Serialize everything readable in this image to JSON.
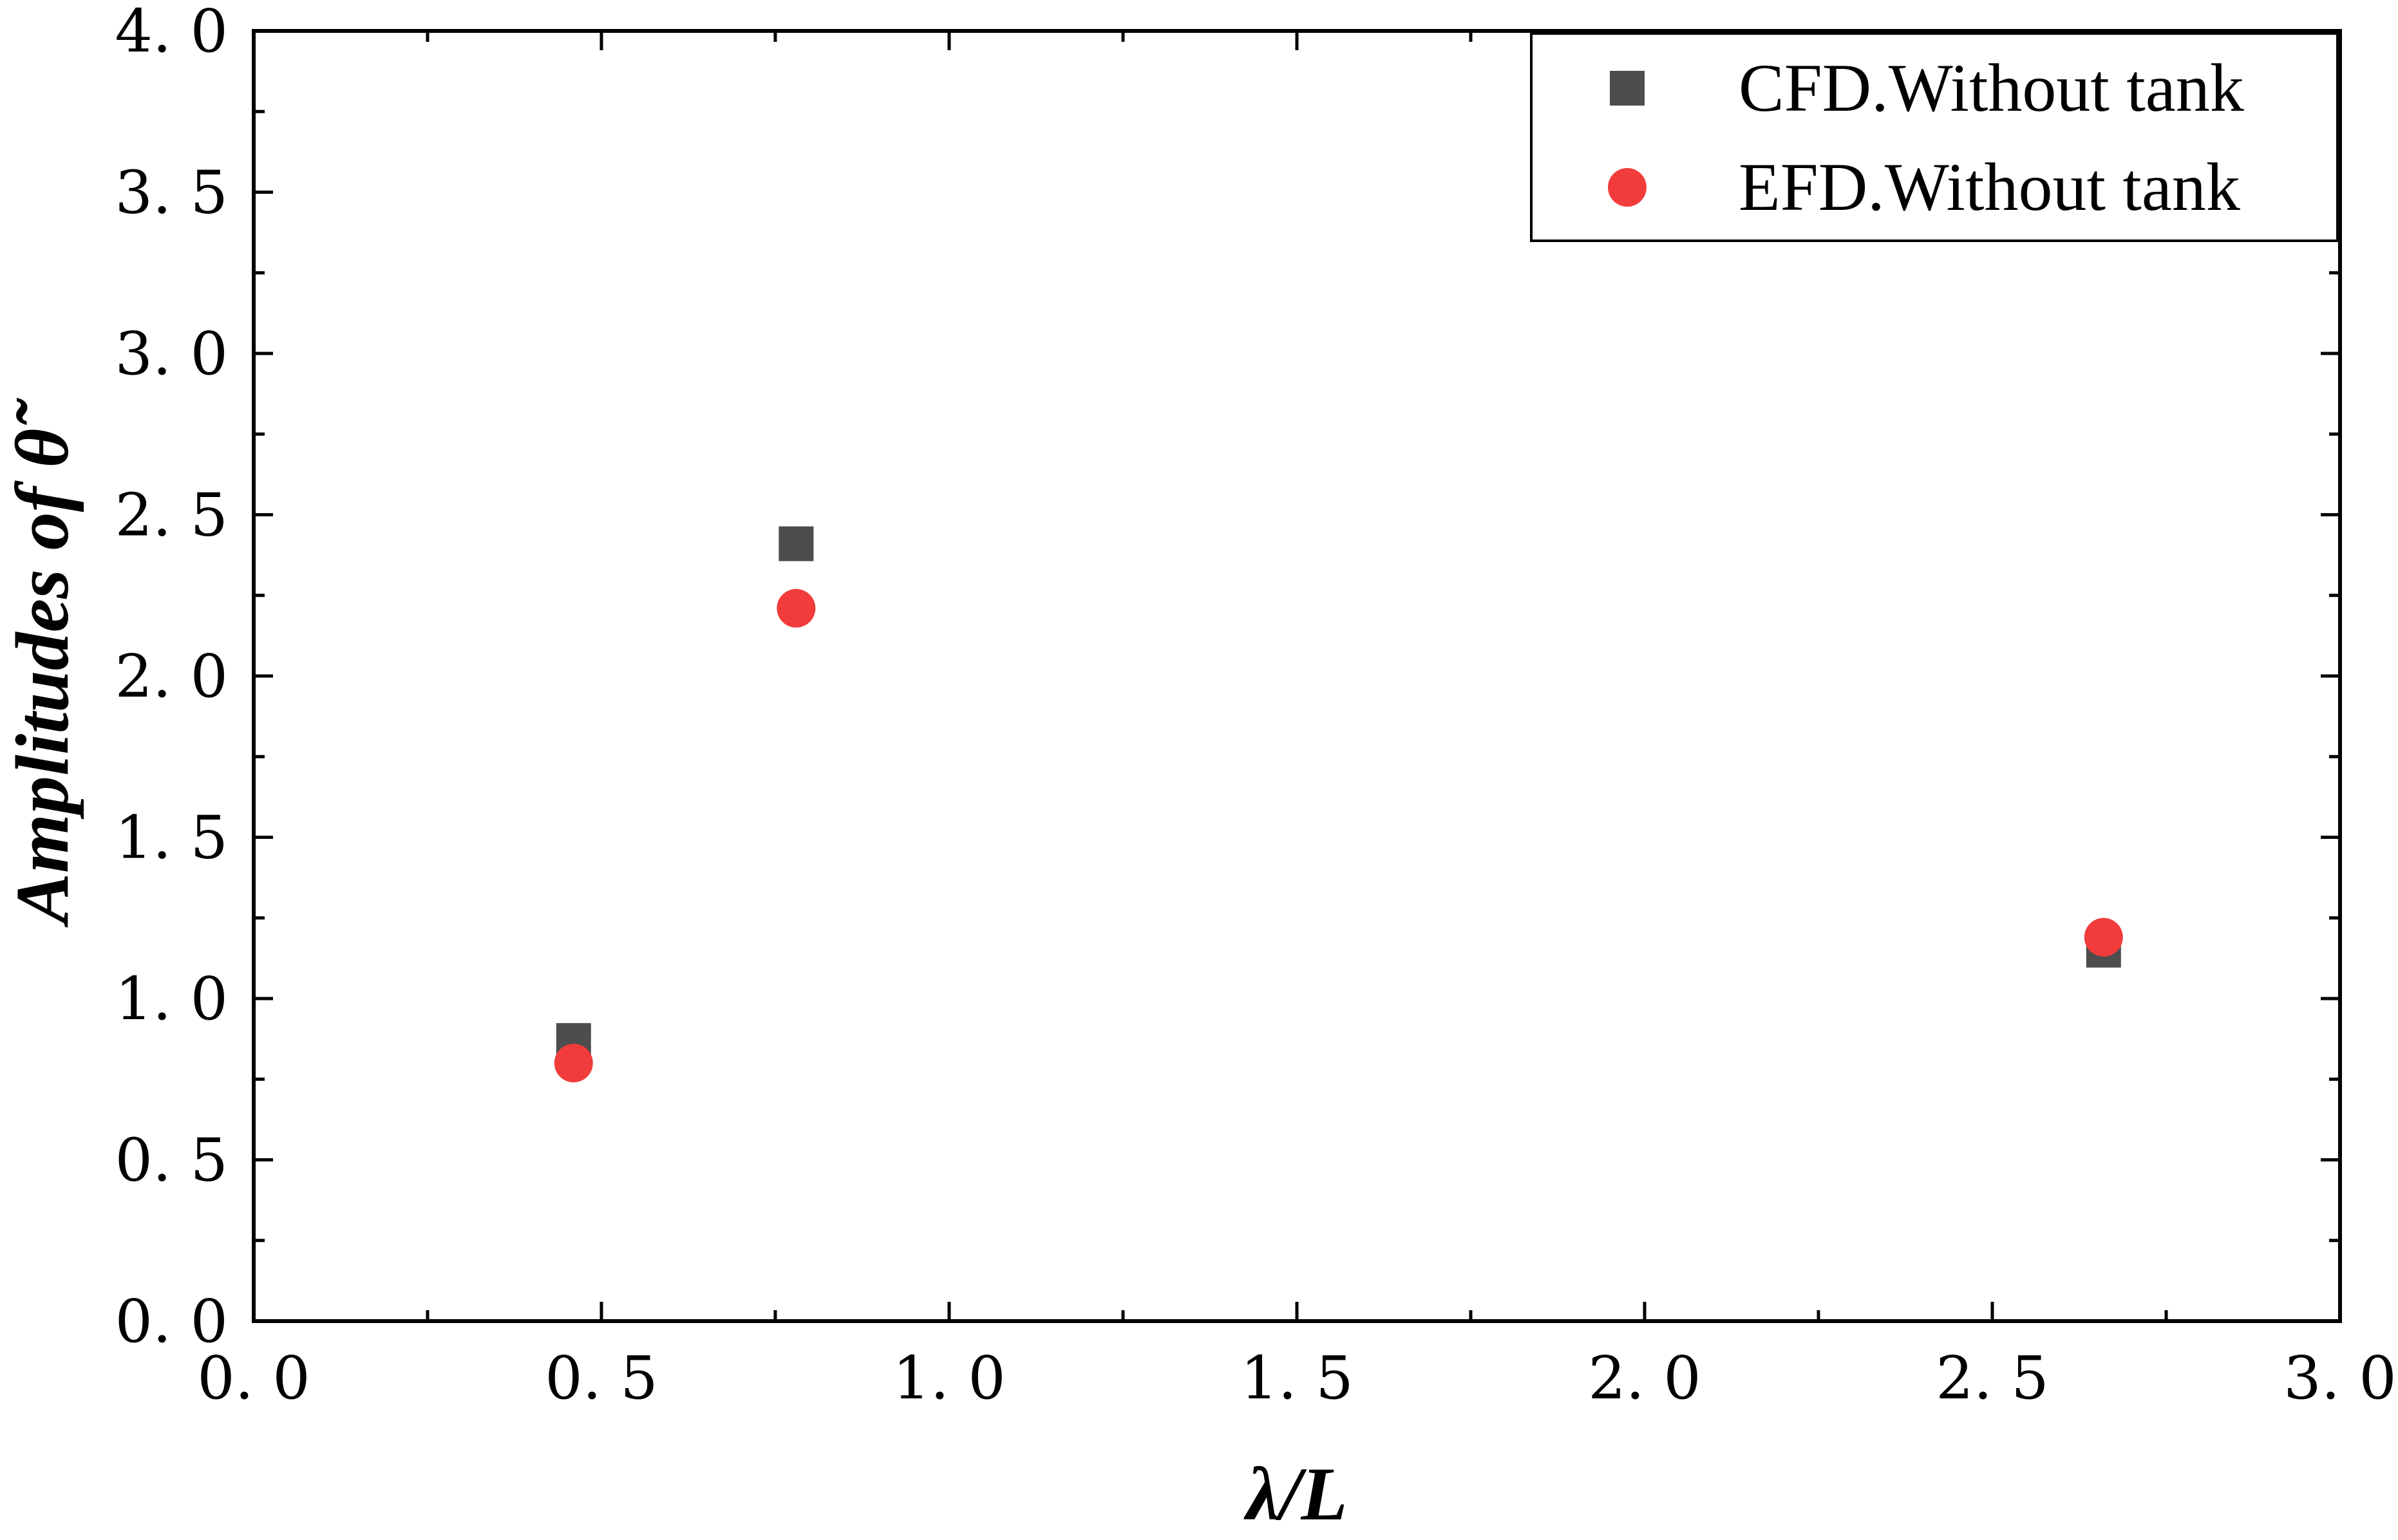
{
  "chart_data": {
    "type": "scatter",
    "title": "",
    "xlabel": "λ/L",
    "ylabel": "Amplitudes of θ̃",
    "xlim": [
      0,
      3.0
    ],
    "ylim": [
      0,
      4.0
    ],
    "xticks": [
      "0. 0",
      "0. 5",
      "1. 0",
      "1. 5",
      "2. 0",
      "2. 5",
      "3. 0"
    ],
    "yticks": [
      "0. 0",
      "0. 5",
      "1. 0",
      "1. 5",
      "2. 0",
      "2. 5",
      "3. 0",
      "3. 5",
      "4. 0"
    ],
    "xtick_values": [
      0,
      0.5,
      1.0,
      1.5,
      2.0,
      2.5,
      3.0
    ],
    "ytick_values": [
      0,
      0.5,
      1.0,
      1.5,
      2.0,
      2.5,
      3.0,
      3.5,
      4.0
    ],
    "legend_position": "top-right",
    "grid": false,
    "series": [
      {
        "name": "CFD.Without tank",
        "marker": "square",
        "color": "#4d4d4d",
        "points": [
          [
            0.46,
            0.87
          ],
          [
            0.78,
            2.41
          ],
          [
            2.66,
            1.15
          ]
        ]
      },
      {
        "name": "EFD.Without tank",
        "marker": "circle",
        "color": "#f23c3c",
        "points": [
          [
            0.46,
            0.8
          ],
          [
            0.78,
            2.21
          ],
          [
            2.66,
            1.19
          ]
        ]
      }
    ]
  }
}
